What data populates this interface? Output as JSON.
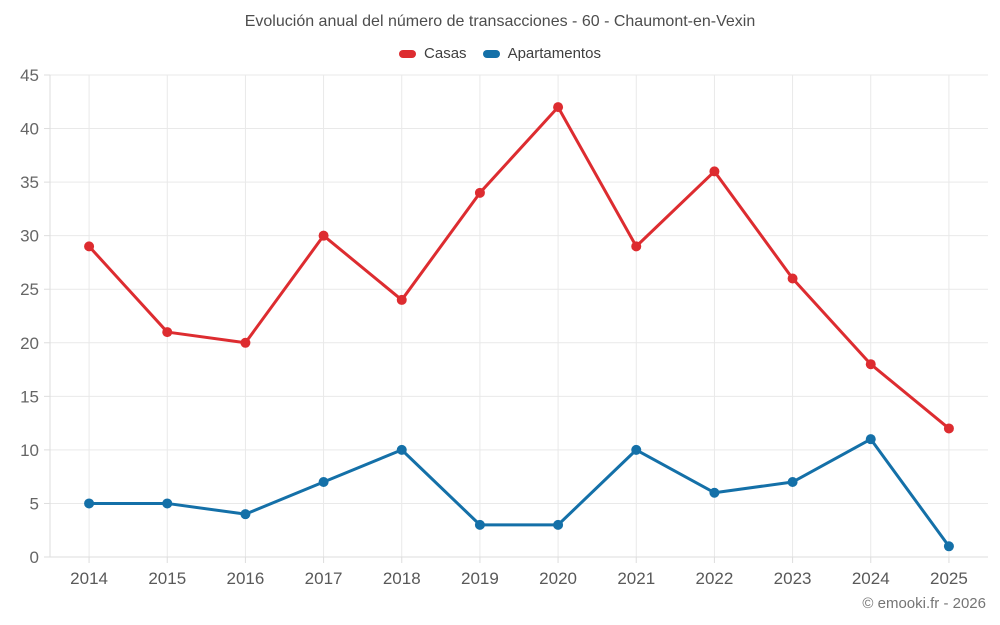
{
  "header": {
    "title": "Evolución anual del número de transacciones - 60 - Chaumont-en-Vexin"
  },
  "footer": {
    "credit": "© emooki.fr - 2026"
  },
  "colors": {
    "casas": "#dd2c30",
    "apartamentos": "#1470a8",
    "grid": "#e9e9e9",
    "axis": "#dddddd",
    "y_tick_label": "#666666",
    "x_tick_label": "#595959",
    "title_text": "#4d4d4d",
    "legend_text": "#3f3f3f",
    "footer_text": "#757575"
  },
  "chart_data": {
    "type": "line",
    "title": "Evolución anual del número de transacciones - 60 - Chaumont-en-Vexin",
    "x": [
      "2014",
      "2015",
      "2016",
      "2017",
      "2018",
      "2019",
      "2020",
      "2021",
      "2022",
      "2023",
      "2024",
      "2025"
    ],
    "series": [
      {
        "name": "Casas",
        "color": "#dd2c30",
        "values": [
          29,
          21,
          20,
          30,
          24,
          34,
          42,
          29,
          36,
          26,
          18,
          12
        ]
      },
      {
        "name": "Apartamentos",
        "color": "#1470a8",
        "values": [
          5,
          5,
          4,
          7,
          10,
          3,
          3,
          10,
          6,
          7,
          11,
          1
        ]
      }
    ],
    "xlabel": "",
    "ylabel": "",
    "ylim": [
      0,
      45
    ],
    "ytick_step": 5,
    "grid": true,
    "legend_position": "top",
    "marker": "circle",
    "marker_radius": 5,
    "line_width": 3
  }
}
